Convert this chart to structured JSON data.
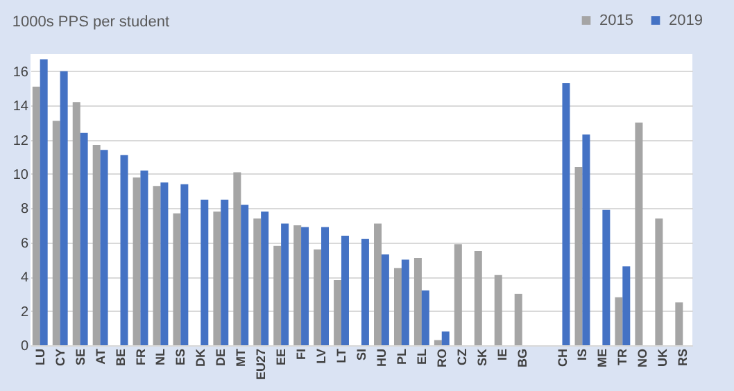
{
  "chart_data": {
    "type": "bar",
    "title": "1000s  PPS per student",
    "categories": [
      "LU",
      "CY",
      "SE",
      "AT",
      "BE",
      "FR",
      "NL",
      "ES",
      "DK",
      "DE",
      "MT",
      "EU27",
      "EE",
      "FI",
      "LV",
      "LT",
      "SI",
      "HU",
      "PL",
      "EL",
      "RO",
      "CZ",
      "SK",
      "IE",
      "BG",
      null,
      "CH",
      "IS",
      "ME",
      "TR",
      "NO",
      "UK",
      "RS"
    ],
    "series": [
      {
        "name": "2015",
        "color": "#a5a5a5",
        "values": [
          15.1,
          13.1,
          14.2,
          11.7,
          null,
          9.8,
          9.3,
          7.7,
          null,
          7.8,
          10.1,
          7.4,
          5.8,
          7.0,
          5.6,
          3.8,
          null,
          7.1,
          4.5,
          5.1,
          0.3,
          5.9,
          5.5,
          4.1,
          3.0,
          null,
          null,
          10.4,
          null,
          2.8,
          13.0,
          7.4,
          2.5
        ]
      },
      {
        "name": "2019",
        "color": "#4472c4",
        "values": [
          16.7,
          16.0,
          12.4,
          11.4,
          11.1,
          10.2,
          9.5,
          9.4,
          8.5,
          8.5,
          8.2,
          7.8,
          7.1,
          6.9,
          6.9,
          6.4,
          6.2,
          5.3,
          5.0,
          3.2,
          0.8,
          null,
          null,
          null,
          null,
          null,
          15.3,
          12.3,
          7.9,
          4.6,
          null,
          null,
          null
        ]
      }
    ],
    "ylim": [
      0,
      17
    ],
    "yticks": [
      0,
      2,
      4,
      6,
      8,
      10,
      12,
      14,
      16
    ],
    "grid": "y",
    "legend": "top right"
  }
}
